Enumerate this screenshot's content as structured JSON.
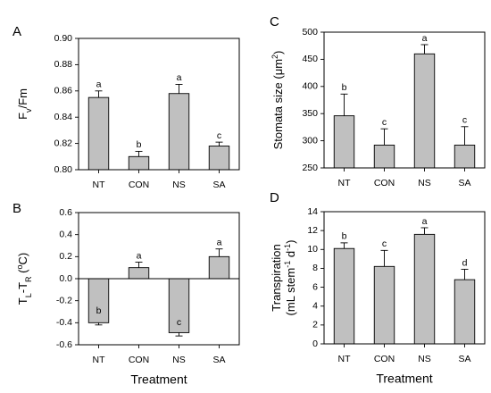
{
  "chart_data": [
    {
      "type": "bar",
      "panel": "A",
      "ylabel_main": "F",
      "ylabel_sub": "v",
      "ylabel_tail": "/Fm",
      "categories": [
        "NT",
        "CON",
        "NS",
        "SA"
      ],
      "values": [
        0.855,
        0.81,
        0.858,
        0.818
      ],
      "errors": [
        0.005,
        0.004,
        0.007,
        0.003
      ],
      "letters": [
        "a",
        "b",
        "a",
        "c"
      ],
      "ylim": [
        0.8,
        0.9
      ],
      "yticks": [
        0.8,
        0.82,
        0.84,
        0.86,
        0.88,
        0.9
      ],
      "ytick_labels": [
        "0.80",
        "0.82",
        "0.84",
        "0.86",
        "0.88",
        "0.90"
      ],
      "xlabel": ""
    },
    {
      "type": "bar",
      "panel": "B",
      "ylabel_main": "T",
      "ylabel_sub": "L",
      "ylabel_mid": "-T",
      "ylabel_sub2": "R",
      "ylabel_open": " (",
      "ylabel_sup": "o",
      "ylabel_tail": "C)",
      "categories": [
        "NT",
        "CON",
        "NS",
        "SA"
      ],
      "values": [
        -0.4,
        0.1,
        -0.49,
        0.2
      ],
      "errors": [
        0.02,
        0.05,
        0.03,
        0.07
      ],
      "letters": [
        "b",
        "a",
        "c",
        "a"
      ],
      "ylim": [
        -0.6,
        0.6
      ],
      "yticks": [
        -0.6,
        -0.4,
        -0.2,
        0.0,
        0.2,
        0.4,
        0.6
      ],
      "ytick_labels": [
        "-0.6",
        "-0.4",
        "-0.2",
        "0.0",
        "0.2",
        "0.4",
        "0.6"
      ],
      "xlabel": "Treatment"
    },
    {
      "type": "bar",
      "panel": "C",
      "ylabel_main": "Stomata size (",
      "ylabel_mu": "μm",
      "ylabel_sup": "2",
      "ylabel_tail": ")",
      "categories": [
        "NT",
        "CON",
        "NS",
        "SA"
      ],
      "values": [
        346,
        292,
        460,
        292
      ],
      "errors": [
        40,
        30,
        17,
        34
      ],
      "letters": [
        "b",
        "c",
        "a",
        "c"
      ],
      "ylim": [
        250,
        500
      ],
      "yticks": [
        250,
        300,
        350,
        400,
        450,
        500
      ],
      "ytick_labels": [
        "250",
        "300",
        "350",
        "400",
        "450",
        "500"
      ],
      "xlabel": ""
    },
    {
      "type": "bar",
      "panel": "D",
      "ylabel_line1": "Transpiration",
      "ylabel_line2a": "(mL stem",
      "ylabel_sup1": "-1",
      "ylabel_line2b": " d",
      "ylabel_sup2": "-1",
      "ylabel_line2c": ")",
      "categories": [
        "NT",
        "CON",
        "NS",
        "SA"
      ],
      "values": [
        10.1,
        8.2,
        11.6,
        6.8
      ],
      "errors": [
        0.6,
        1.7,
        0.7,
        1.1
      ],
      "letters": [
        "b",
        "c",
        "a",
        "d"
      ],
      "ylim": [
        0,
        14
      ],
      "yticks": [
        0,
        2,
        4,
        6,
        8,
        10,
        12,
        14
      ],
      "ytick_labels": [
        "0",
        "2",
        "4",
        "6",
        "8",
        "10",
        "12",
        "14"
      ],
      "xlabel": "Treatment"
    }
  ],
  "colors": {
    "bar_fill": "#c0c0c0",
    "axis": "#000000"
  }
}
